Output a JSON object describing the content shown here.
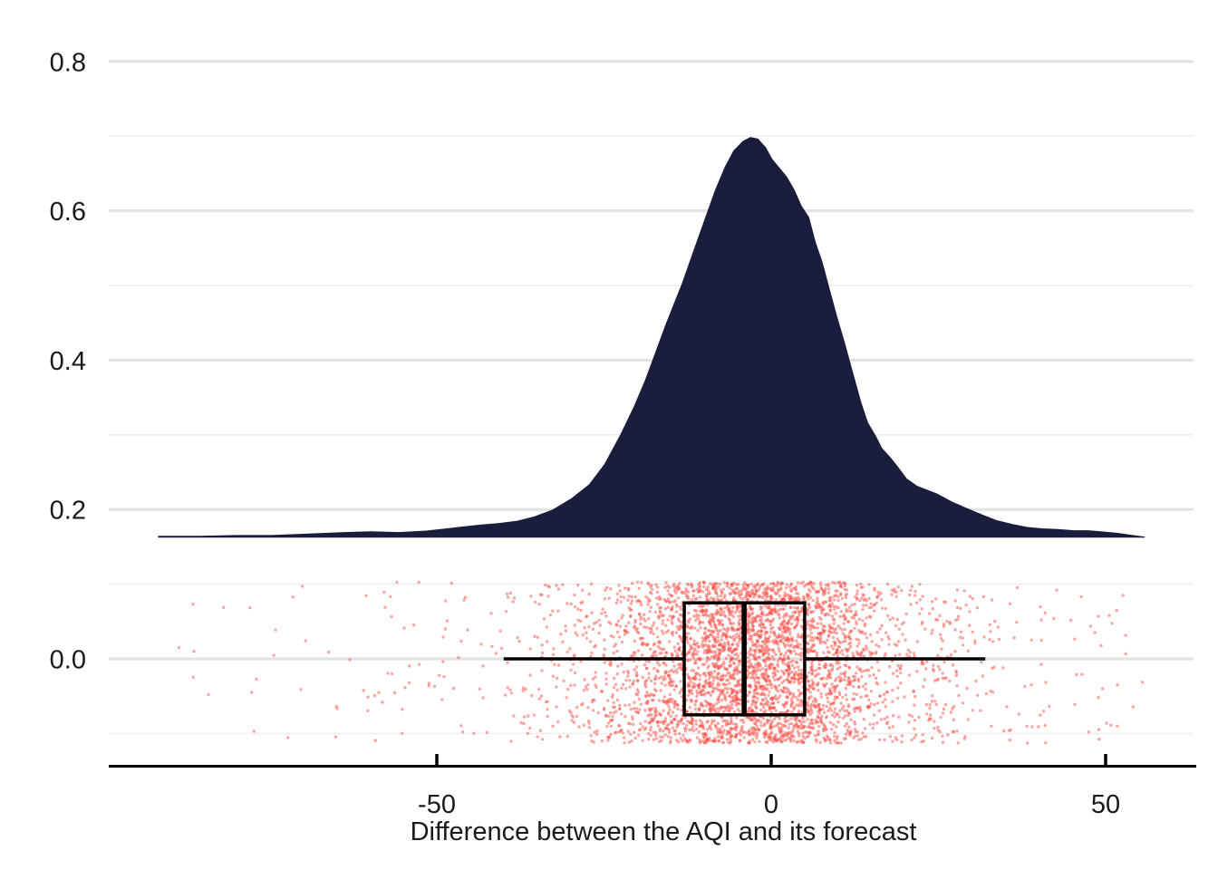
{
  "chart_data": {
    "type": "raincloud (half-eye density + boxplot + jittered points)",
    "title": "",
    "xlabel": "Difference between the AQI and its forecast",
    "ylabel": "",
    "x_axis": {
      "ticks": [
        -50,
        0,
        50
      ],
      "tick_labels": [
        "-50",
        "0",
        "50"
      ],
      "range": [
        -99,
        63.5
      ],
      "grid": false
    },
    "y_axis": {
      "major_ticks": [
        0.0,
        0.2,
        0.4,
        0.6,
        0.8
      ],
      "tick_labels": [
        "0.0",
        "0.2",
        "0.4",
        "0.6",
        "0.8"
      ],
      "minor_ticks": [
        -0.1,
        0.1,
        0.3,
        0.5,
        0.7
      ],
      "range": [
        -0.143,
        0.88
      ],
      "grid": true
    },
    "density": {
      "baseline_y": 0.163,
      "peak": {
        "x": -3.1,
        "height": 0.535,
        "top_value": 0.7
      },
      "x": [
        -91.6,
        -85.5,
        -80.1,
        -74.7,
        -69.2,
        -63.8,
        -59.8,
        -55.7,
        -51.6,
        -47.6,
        -43.5,
        -40.8,
        -38.1,
        -35.4,
        -32.7,
        -29.9,
        -27.2,
        -24.9,
        -22.5,
        -20.5,
        -18.8,
        -17.6,
        -15.7,
        -13.3,
        -11.7,
        -9.9,
        -8.3,
        -6.9,
        -5.6,
        -4.2,
        -3.1,
        -2.0,
        -0.9,
        0.1,
        1.2,
        2.3,
        3.4,
        4.5,
        5.6,
        6.6,
        7.6,
        8.7,
        9.8,
        11.0,
        12.1,
        13.4,
        14.4,
        15.6,
        16.5,
        17.8,
        18.8,
        20.2,
        21.8,
        24.7,
        27.0,
        29.3,
        31.7,
        33.7,
        36.0,
        38.2,
        40.5,
        42.8,
        45.3,
        47.3,
        49.3,
        51.8,
        53.8,
        55.8
      ],
      "height": [
        0.001,
        0.001,
        0.002,
        0.002,
        0.004,
        0.006,
        0.007,
        0.006,
        0.008,
        0.012,
        0.016,
        0.018,
        0.021,
        0.027,
        0.036,
        0.051,
        0.07,
        0.097,
        0.137,
        0.174,
        0.21,
        0.239,
        0.285,
        0.339,
        0.38,
        0.425,
        0.465,
        0.495,
        0.517,
        0.53,
        0.535,
        0.533,
        0.522,
        0.506,
        0.494,
        0.482,
        0.465,
        0.443,
        0.428,
        0.394,
        0.368,
        0.331,
        0.295,
        0.258,
        0.222,
        0.18,
        0.153,
        0.135,
        0.119,
        0.106,
        0.095,
        0.078,
        0.068,
        0.058,
        0.047,
        0.038,
        0.029,
        0.022,
        0.017,
        0.013,
        0.011,
        0.01,
        0.0085,
        0.0085,
        0.007,
        0.005,
        0.0024,
        0.0
      ]
    },
    "boxplot": {
      "median": -4.05,
      "q1": -13.0,
      "q3": 5.0,
      "whisker_low": -40.0,
      "whisker_high": 32.0,
      "center_y": 0.0,
      "half_height": 0.075
    },
    "rain": {
      "n_points": 4000,
      "x_extent": [
        -92,
        56
      ],
      "y_band": [
        -0.113,
        0.103
      ],
      "seed": 20240817
    },
    "colors": {
      "density_fill": "#1b1d3d",
      "rain": "#f85048",
      "rain_opacity": 0.5,
      "box_stroke": "#000000",
      "grid_major": "#e2e2e2",
      "grid_minor": "#eeeeee",
      "axis_line": "#000000",
      "text": "#1a1a1a"
    }
  }
}
